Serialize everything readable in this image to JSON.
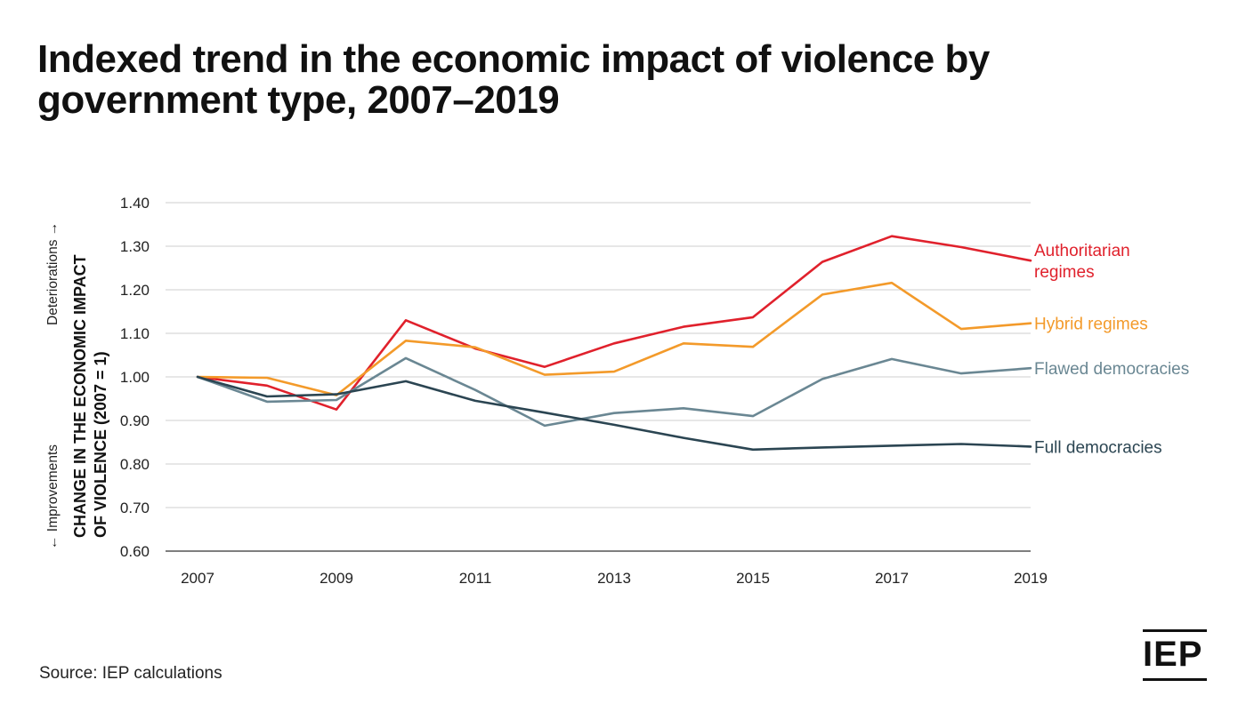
{
  "title": "Indexed trend in the economic impact of violence by government type, 2007–2019",
  "source": "Source: IEP calculations",
  "logo": "IEP",
  "chart_data": {
    "type": "line",
    "ylabel": "CHANGE IN THE ECONOMIC IMPACT OF VIOLENCE (2007 = 1)",
    "ylabel_lines": [
      "CHANGE IN THE ECONOMIC IMPACT",
      "OF VIOLENCE (2007 = 1)"
    ],
    "direction_up": "Deteriorations →",
    "direction_down": "← Improvements",
    "ylim": [
      0.6,
      1.4
    ],
    "yticks": [
      0.6,
      0.7,
      0.8,
      0.9,
      1.0,
      1.1,
      1.2,
      1.3,
      1.4
    ],
    "ytick_labels": [
      "0.60",
      "0.70",
      "0.80",
      "0.90",
      "1.00",
      "1.10",
      "1.20",
      "1.30",
      "1.40"
    ],
    "xlim": [
      2007,
      2019
    ],
    "xticks": [
      2007,
      2009,
      2011,
      2013,
      2015,
      2017,
      2019
    ],
    "xtick_labels": [
      "2007",
      "2009",
      "2011",
      "2013",
      "2015",
      "2017",
      "2019"
    ],
    "x": [
      2007,
      2008,
      2009,
      2010,
      2011,
      2012,
      2013,
      2014,
      2015,
      2016,
      2017,
      2018,
      2019
    ],
    "grid": "horizontal",
    "series": [
      {
        "name": "Authoritarian regimes",
        "label_lines": [
          "Authoritarian",
          "regimes"
        ],
        "color": "#e0212c",
        "values": [
          1.0,
          0.98,
          0.925,
          1.13,
          1.065,
          1.023,
          1.077,
          1.115,
          1.137,
          1.264,
          1.323,
          1.298,
          1.267
        ]
      },
      {
        "name": "Hybrid regimes",
        "label_lines": [
          "Hybrid regimes"
        ],
        "color": "#f39a2a",
        "values": [
          1.0,
          0.998,
          0.958,
          1.083,
          1.068,
          1.005,
          1.012,
          1.077,
          1.069,
          1.189,
          1.216,
          1.11,
          1.123
        ]
      },
      {
        "name": "Flawed democracies",
        "label_lines": [
          "Flawed democracies"
        ],
        "color": "#6a8793",
        "values": [
          1.0,
          0.943,
          0.947,
          1.043,
          0.97,
          0.888,
          0.917,
          0.928,
          0.91,
          0.995,
          1.041,
          1.008,
          1.02
        ]
      },
      {
        "name": "Full democracies",
        "label_lines": [
          "Full democracies"
        ],
        "color": "#2b4552",
        "values": [
          1.0,
          0.955,
          0.96,
          0.99,
          0.945,
          0.918,
          0.89,
          0.86,
          0.833,
          0.838,
          0.842,
          0.846,
          0.84
        ]
      }
    ]
  }
}
